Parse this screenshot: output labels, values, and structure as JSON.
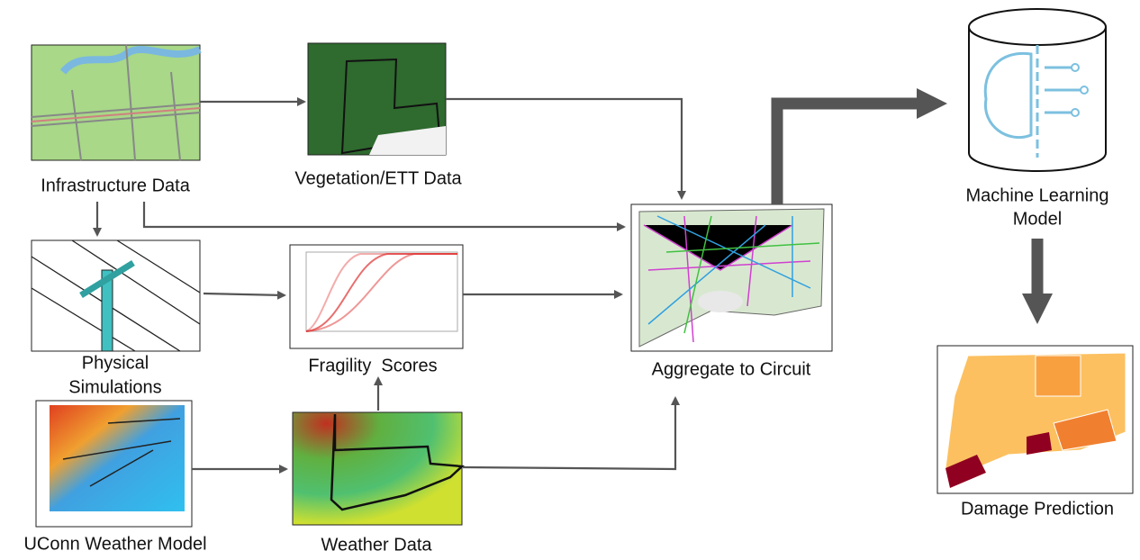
{
  "nodes": [
    {
      "label": "Infrastructure Data"
    },
    {
      "label": "Vegetation/ETT Data"
    },
    {
      "label_lines": [
        "Physical",
        "Simulations"
      ]
    },
    {
      "label": "Fragility  Scores"
    },
    {
      "label": "UConn Weather Model"
    },
    {
      "label": "Weather Data"
    },
    {
      "label": "Aggregate to Circuit"
    },
    {
      "label_lines": [
        "Machine Learning",
        "Model"
      ]
    },
    {
      "label": "Damage Prediction"
    }
  ]
}
